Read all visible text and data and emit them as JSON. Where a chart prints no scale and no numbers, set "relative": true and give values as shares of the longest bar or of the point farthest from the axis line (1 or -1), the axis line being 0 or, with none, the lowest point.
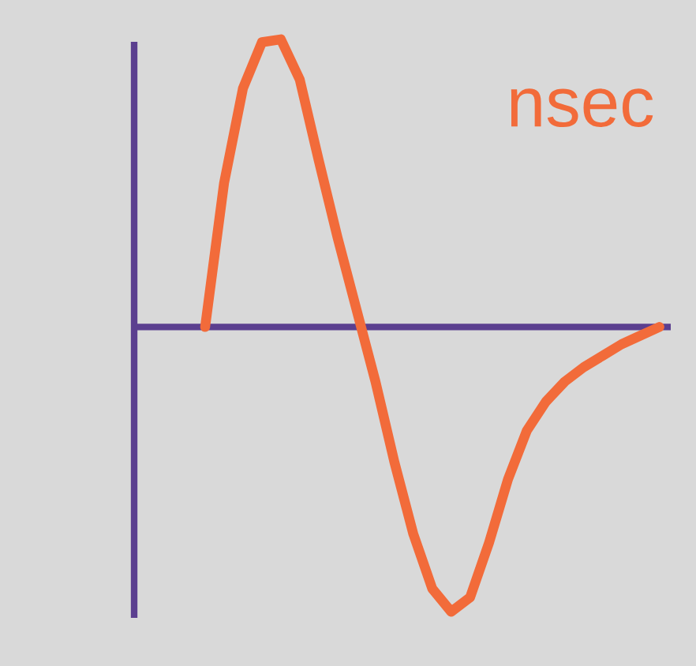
{
  "chart_data": {
    "type": "line",
    "relative": true,
    "categories": [
      null,
      null,
      null,
      null,
      null,
      null,
      null,
      null,
      null,
      null,
      null,
      null,
      null,
      null,
      null,
      null,
      null,
      null,
      null,
      null,
      null,
      null,
      null,
      null,
      null
    ],
    "series": [
      {
        "color": "#f26b3a",
        "values": [
          0,
          0.5,
          0.83,
          0.99,
          1,
          0.86,
          0.58,
          0.31,
          0.06,
          -0.19,
          -0.47,
          -0.72,
          -0.91,
          -0.99,
          -0.94,
          -0.75,
          -0.53,
          -0.36,
          -0.26,
          -0.19,
          -0.14,
          -0.1,
          -0.06,
          -0.03,
          0
        ]
      }
    ],
    "annotations": [
      "nsec"
    ],
    "line_style": "solid",
    "ref_lines": [
      {
        "axis": "y",
        "value": 0,
        "color": "#5b3f8f"
      }
    ]
  }
}
